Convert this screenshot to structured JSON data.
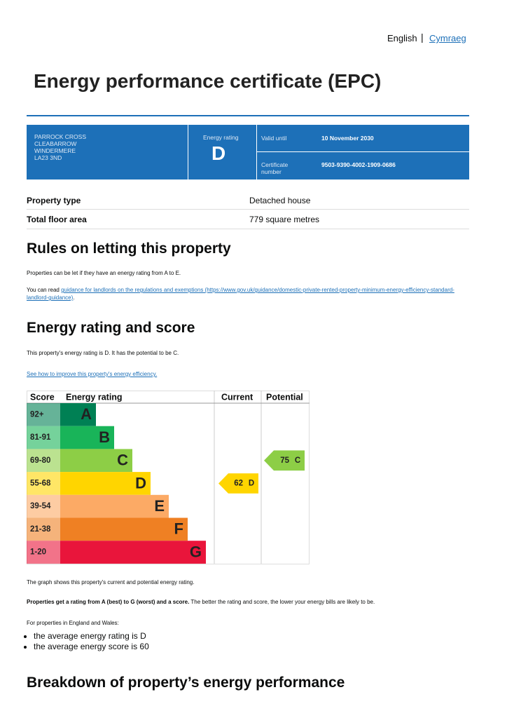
{
  "header": {
    "languages": [
      "English",
      "Cymraeg"
    ],
    "title": "Energy performance certificate (EPC)"
  },
  "summary": {
    "address": [
      "PARROCK CROSS",
      "CLEABARROW",
      "WINDERMERE",
      "LA23 3ND"
    ],
    "energy_rating_label": "Energy rating",
    "energy_rating": "D",
    "valid_until_label": "Valid until",
    "valid_until": "10 November 2030",
    "certificate_number_label": "Certificate number",
    "certificate_number": "9503-9390-4002-1909-0686"
  },
  "property": {
    "rows": [
      [
        "Property type",
        "Detached house"
      ],
      [
        "Total floor area",
        "779 square metres"
      ]
    ]
  },
  "letting": {
    "heading": "Rules on letting this property",
    "text": "Properties can be let if they have an energy rating from A to E.",
    "guidance_prefix": "You can read ",
    "guidance_link": "guidance for landlords on the regulations and exemptions (https://www.gov.uk/guidance/domestic-private-rented-property-minimum-energy-efficiency-standard-landlord-guidance)",
    "guidance_suffix": "."
  },
  "rating": {
    "heading": "Energy rating and score",
    "text": "This property's energy rating is D. It has the potential to be C.",
    "improve_link": "See how to improve this property's energy efficiency."
  },
  "rating_chart": {
    "headers": [
      "Score",
      "Energy rating",
      "Current",
      "Potential"
    ],
    "bands": [
      {
        "range": "92+",
        "letter": "A",
        "color": "#008054"
      },
      {
        "range": "81-91",
        "letter": "B",
        "color": "#19b459"
      },
      {
        "range": "69-80",
        "letter": "C",
        "color": "#8dce46"
      },
      {
        "range": "55-68",
        "letter": "D",
        "color": "#ffd500"
      },
      {
        "range": "39-54",
        "letter": "E",
        "color": "#fcaa65"
      },
      {
        "range": "21-38",
        "letter": "F",
        "color": "#ef8023"
      },
      {
        "range": "1-20",
        "letter": "G",
        "color": "#e9153b"
      }
    ],
    "current": {
      "score": 62,
      "letter": "D"
    },
    "potential": {
      "score": 75,
      "letter": "C"
    }
  },
  "notes": {
    "graph_text": "The graph shows this property's current and potential energy rating.",
    "scale_bold": "Properties get a rating from A (best) to G (worst) and a score.",
    "scale_text": " The better the rating and score, the lower your energy bills are likely to be.",
    "averages_intro": "For properties in England and Wales:",
    "averages": [
      "the average energy rating is D",
      "the average energy score is 60"
    ]
  },
  "breakdown": {
    "heading": "Breakdown of property’s energy performance"
  }
}
